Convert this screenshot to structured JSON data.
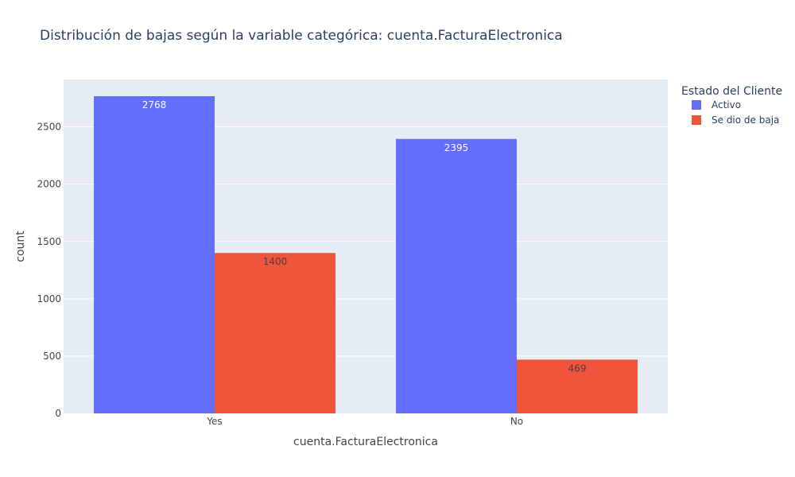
{
  "chart_data": {
    "type": "bar",
    "title": "Distribución de bajas según la variable categórica: cuenta.FacturaElectronica",
    "xlabel": "cuenta.FacturaElectronica",
    "ylabel": "count",
    "categories": [
      "Yes",
      "No"
    ],
    "series": [
      {
        "name": "Activo",
        "values": [
          2768,
          2395
        ],
        "color": "#636efa",
        "label_color": "#ffffff"
      },
      {
        "name": "Se dio de baja",
        "values": [
          1400,
          469
        ],
        "color": "#ef553b",
        "label_color": "#444444"
      }
    ],
    "ylim": [
      0,
      2913.7
    ],
    "yticks": [
      0,
      500,
      1000,
      1500,
      2000,
      2500
    ],
    "legend_title": "Estado del Cliente",
    "legend_position": "top-right",
    "grid": true,
    "plot_background": "#e5ecf6"
  }
}
